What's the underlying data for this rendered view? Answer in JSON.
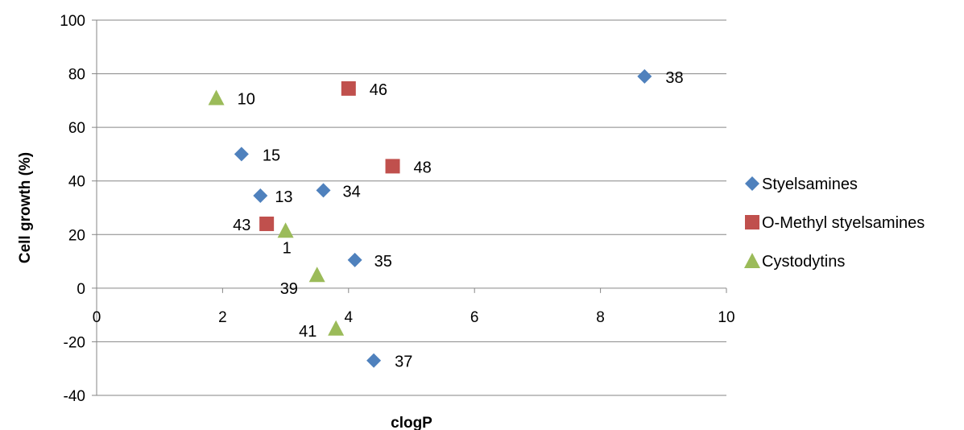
{
  "chart_data": {
    "type": "scatter",
    "title": "",
    "xlabel": "clogP",
    "ylabel": "Cell growth (%)",
    "xlim": [
      0,
      10
    ],
    "ylim": [
      -40,
      100
    ],
    "x_ticks": [
      0,
      2,
      4,
      6,
      8,
      10
    ],
    "y_ticks": [
      -40,
      -20,
      0,
      20,
      40,
      60,
      80,
      100
    ],
    "grid": "horizontal",
    "legend_position": "right",
    "series": [
      {
        "name": "Styelsamines",
        "marker": "diamond",
        "color": "#4F81BD",
        "points": [
          {
            "x": 8.7,
            "y": 79,
            "label": "38"
          },
          {
            "x": 2.3,
            "y": 50,
            "label": "15"
          },
          {
            "x": 2.6,
            "y": 34.5,
            "label": "13"
          },
          {
            "x": 3.6,
            "y": 36.5,
            "label": "34"
          },
          {
            "x": 4.1,
            "y": 10.5,
            "label": "35"
          },
          {
            "x": 4.4,
            "y": -27,
            "label": "37"
          }
        ]
      },
      {
        "name": "O-Methyl styelsamines",
        "marker": "square",
        "color": "#C0504D",
        "points": [
          {
            "x": 4.0,
            "y": 74.5,
            "label": "46"
          },
          {
            "x": 4.7,
            "y": 45.5,
            "label": "48"
          },
          {
            "x": 2.7,
            "y": 24,
            "label": "43"
          }
        ]
      },
      {
        "name": "Cystodytins",
        "marker": "triangle",
        "color": "#9BBB59",
        "points": [
          {
            "x": 1.9,
            "y": 71,
            "label": "10"
          },
          {
            "x": 3.0,
            "y": 21.5,
            "label": "1"
          },
          {
            "x": 3.5,
            "y": 5,
            "label": "39"
          },
          {
            "x": 3.8,
            "y": -15,
            "label": "41"
          }
        ]
      }
    ]
  }
}
